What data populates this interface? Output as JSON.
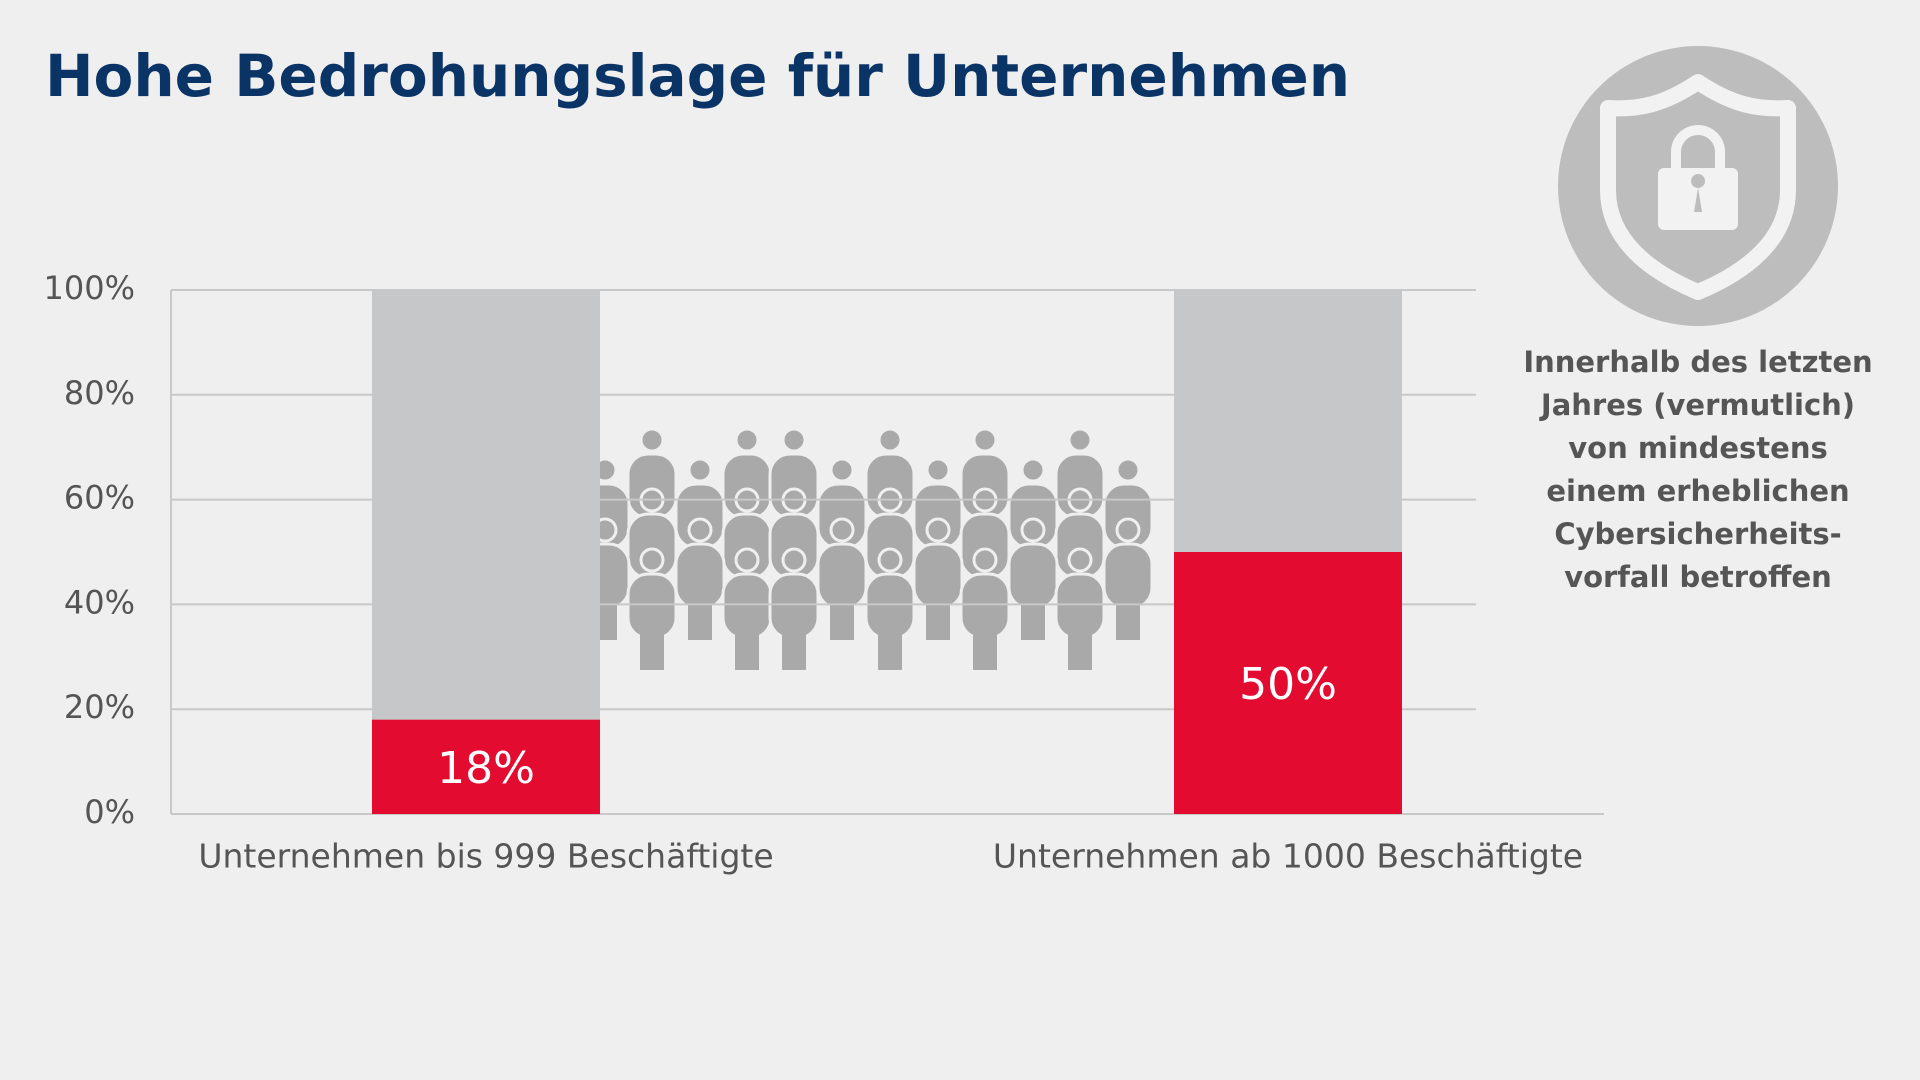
{
  "chart_data": {
    "type": "bar",
    "title": "Hohe Bedrohungslage für Unternehmen",
    "categories": [
      "Unternehmen bis 999 Beschäftigte",
      "Unternehmen ab 1000 Beschäftigte"
    ],
    "values": [
      18,
      50
    ],
    "value_labels": [
      "18%",
      "50%"
    ],
    "color": "#e30b2f",
    "ylim": [
      0,
      100
    ],
    "yticks": [
      {
        "value": 0,
        "label": "0%"
      },
      {
        "value": 20,
        "label": "20%"
      },
      {
        "value": 40,
        "label": "40%"
      },
      {
        "value": 60,
        "label": "60%"
      },
      {
        "value": 80,
        "label": "80%"
      },
      {
        "value": 100,
        "label": "100%"
      }
    ],
    "grid": true,
    "annotation": [
      "Innerhalb des letzten",
      "Jahres (vermutlich)",
      "von mindestens",
      "einem erheblichen",
      "Cybersicherheits-",
      "vorfall betroffen"
    ]
  }
}
